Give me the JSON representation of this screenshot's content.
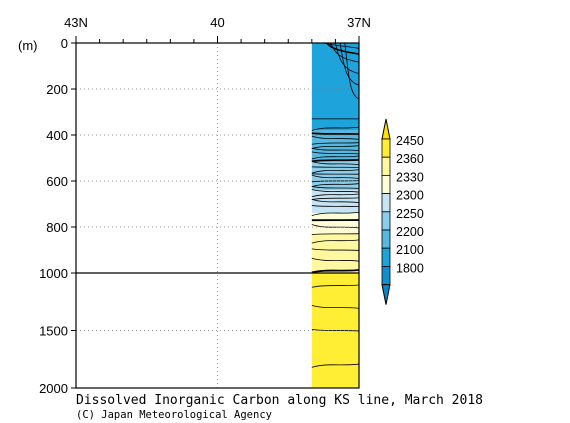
{
  "chart_data": {
    "type": "heatmap",
    "title": "Dissolved Inorganic Carbon along KS line, March 2018",
    "credit": "(C) Japan Meteorological Agency",
    "ylabel": "(m)",
    "x_ticks": [
      {
        "lat": 43,
        "label": "43N"
      },
      {
        "lat": 40,
        "label": "40"
      },
      {
        "lat": 37,
        "label": "37N"
      }
    ],
    "x_minor": [
      42.5,
      42,
      41.5,
      41,
      40.5,
      39.5,
      39,
      38.5,
      38,
      37.5
    ],
    "xlim": [
      43,
      37
    ],
    "y_ticks": [
      {
        "depth": 0,
        "label": "0"
      },
      {
        "depth": 200,
        "label": "200"
      },
      {
        "depth": 400,
        "label": "400"
      },
      {
        "depth": 600,
        "label": "600"
      },
      {
        "depth": 800,
        "label": "800"
      },
      {
        "depth": 1000,
        "label": "1000"
      },
      {
        "depth": 1500,
        "label": "1500"
      },
      {
        "depth": 2000,
        "label": "2000"
      }
    ],
    "ylim": [
      0,
      2000
    ],
    "y_scale_break": 1000,
    "data_section": {
      "lat_north": 38.0,
      "lat_south": 37.0
    },
    "colorbar": {
      "labels": [
        "2450",
        "2360",
        "2330",
        "2300",
        "2250",
        "2200",
        "2100",
        "1800"
      ],
      "colors": [
        "#FFEE33",
        "#FFF8A0",
        "#FFFCD8",
        "#C6E4F4",
        "#8CCEEA",
        "#55B8E0",
        "#1FA3DB",
        "#0F8FCC"
      ],
      "upper_extend_color": "#FFE000",
      "lower_extend_color": "#0A86C8"
    },
    "bands": [
      {
        "top": 0,
        "bottom": 380,
        "color": "#1FA3DB"
      },
      {
        "top": 380,
        "bottom": 510,
        "color": "#55B8E0"
      },
      {
        "top": 510,
        "bottom": 640,
        "color": "#8CCEEA"
      },
      {
        "top": 640,
        "bottom": 740,
        "color": "#C6E4F4"
      },
      {
        "top": 740,
        "bottom": 830,
        "color": "#FFFCD8"
      },
      {
        "top": 830,
        "bottom": 1000,
        "color": "#FFF8A0"
      },
      {
        "top": 1000,
        "bottom": 2000,
        "color": "#FFEE33"
      }
    ],
    "contour_depths": [
      330,
      370,
      395,
      415,
      435,
      450,
      465,
      480,
      495,
      510,
      525,
      540,
      555,
      570,
      585,
      600,
      615,
      630,
      645,
      660,
      675,
      690,
      710,
      740,
      770,
      800,
      830,
      860,
      900,
      945,
      990,
      1110,
      1300,
      1500,
      1800
    ],
    "bold_contours": [
      395,
      510,
      770,
      990
    ],
    "shallow_contours": [
      {
        "lat_start": 37.75,
        "lat_end": 37.0,
        "depth": 10
      },
      {
        "lat_start": 37.68,
        "lat_end": 37.0,
        "depth": 35
      },
      {
        "lat_start": 37.6,
        "lat_end": 37.0,
        "depth": 70
      },
      {
        "lat_start": 37.5,
        "lat_end": 37.0,
        "depth": 120
      },
      {
        "lat_start": 37.4,
        "lat_end": 37.0,
        "depth": 170
      },
      {
        "lat_start": 37.3,
        "lat_end": 37.0,
        "depth": 230
      }
    ]
  }
}
